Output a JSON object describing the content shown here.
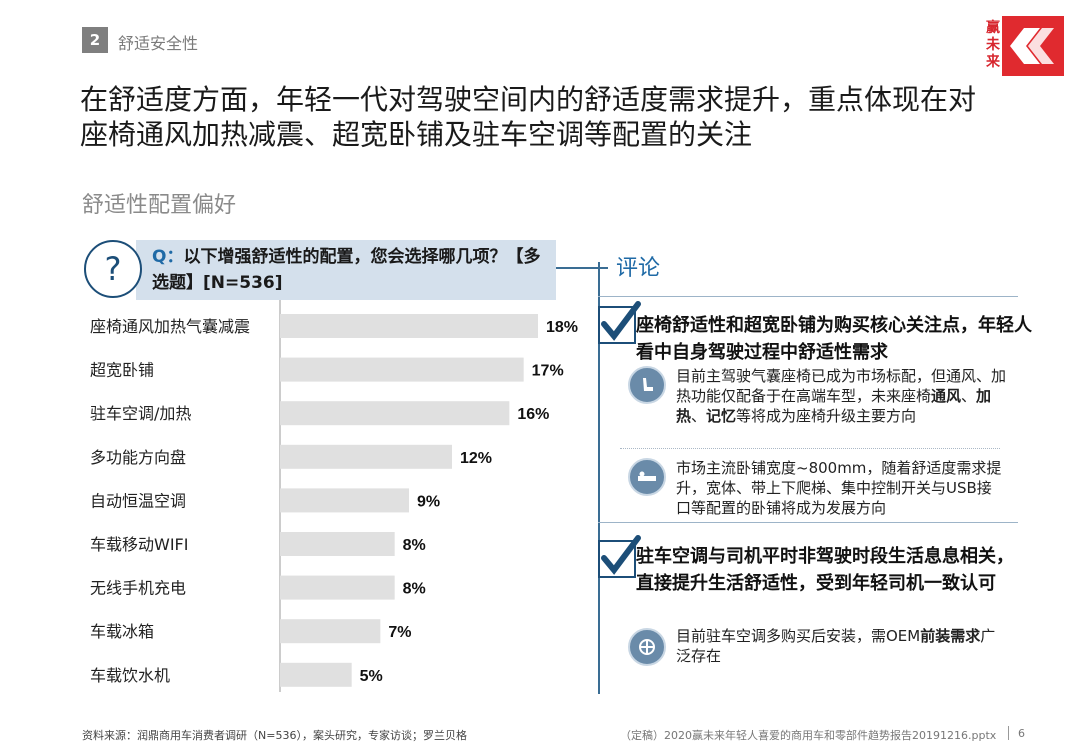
{
  "header": {
    "section_num": "2",
    "section_title": "舒适安全性",
    "logo_text": "赢未来"
  },
  "headline": "在舒适度方面，年轻一代对驾驶空间内的舒适度需求提升，重点体现在对座椅通风加热减震、超宽卧铺及驻车空调等配置的关注",
  "subhead": "舒适性配置偏好",
  "question": {
    "prefix": "Q：",
    "text": "以下增强舒适性的配置，您会选择哪几项？【多选题】[N=536]",
    "icon": "question-icon"
  },
  "chart_data": {
    "type": "bar",
    "orientation": "horizontal",
    "categories": [
      "座椅通风加热气囊减震",
      "超宽卧铺",
      "驻车空调/加热",
      "多功能方向盘",
      "自动恒温空调",
      "车载移动WIFI",
      "无线手机充电",
      "车载冰箱",
      "车载饮水机"
    ],
    "values": [
      18,
      17,
      16,
      12,
      9,
      8,
      8,
      7,
      5
    ],
    "value_labels": [
      "18%",
      "17%",
      "16%",
      "12%",
      "9%",
      "8%",
      "8%",
      "7%",
      "5%"
    ],
    "unit": "%",
    "xlim": [
      0,
      18
    ],
    "bar_color": "#e0e0e0",
    "grid": false
  },
  "comments": {
    "title": "评论",
    "block1": {
      "heading": "座椅舒适性和超宽卧铺为购买核心关注点，年轻人看中自身驾驶过程中舒适性需求",
      "item1": {
        "icon": "seat-icon",
        "text_a": "目前主驾驶气囊座椅已成为市场标配，但通风、加热功能仅配备于在高端车型，未来座椅",
        "hl1": "通风",
        "sep1": "、",
        "hl2": "加热",
        "sep2": "、",
        "hl3": "记忆",
        "text_b": "等将成为座椅升级主要方向"
      },
      "item2": {
        "icon": "bed-icon",
        "text": "市场主流卧铺宽度~800mm，随着舒适度需求提升，宽体、带上下爬梯、集中控制开关与USB接口等配置的卧铺将成为发展方向"
      }
    },
    "block2": {
      "heading": "驻车空调与司机平时非驾驶时段生活息息相关，直接提升生活舒适性，受到年轻司机一致认可",
      "item1": {
        "icon": "air-conditioner-icon",
        "text_a": "目前驻车空调多购买后安装，需OEM",
        "hl": "前装需求",
        "text_b": "广泛存在"
      }
    }
  },
  "footer": {
    "source": "资料来源：润鼎商用车消费者调研（N=536），案头研究，专家访谈；罗兰贝格",
    "file": "（定稿）2020赢未来年轻人喜爱的商用车和零部件趋势报告20191216.pptx",
    "page": "6"
  }
}
